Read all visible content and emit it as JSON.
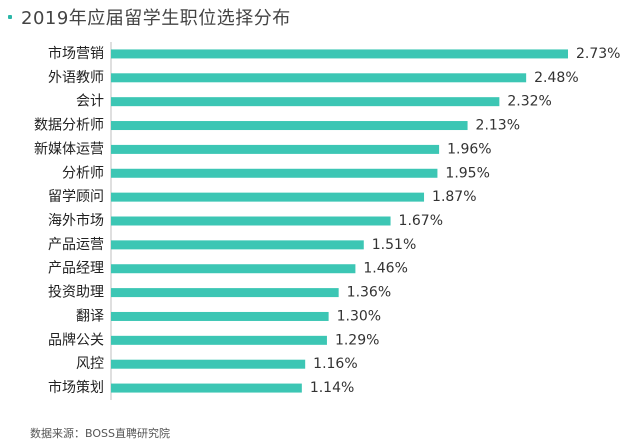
{
  "chart_data": {
    "type": "bar",
    "orientation": "horizontal",
    "title": "2019年应届留学生职位选择分布",
    "categories": [
      "市场营销",
      "外语教师",
      "会计",
      "数据分析师",
      "新媒体运营",
      "分析师",
      "留学顾问",
      "海外市场",
      "产品运营",
      "产品经理",
      "投资助理",
      "翻译",
      "品牌公关",
      "风控",
      "市场策划"
    ],
    "values": [
      2.73,
      2.48,
      2.32,
      2.13,
      1.96,
      1.95,
      1.87,
      1.67,
      1.51,
      1.46,
      1.36,
      1.3,
      1.29,
      1.16,
      1.14
    ],
    "value_labels": [
      "2.73%",
      "2.48%",
      "2.32%",
      "2.13%",
      "1.96%",
      "1.95%",
      "1.87%",
      "1.67%",
      "1.51%",
      "1.46%",
      "1.36%",
      "1.30%",
      "1.29%",
      "1.16%",
      "1.14%"
    ],
    "xlim": [
      0,
      2.73
    ],
    "grid": false,
    "bar_color": "#3cc6b4",
    "source": "数据来源：BOSS直聘研究院"
  }
}
